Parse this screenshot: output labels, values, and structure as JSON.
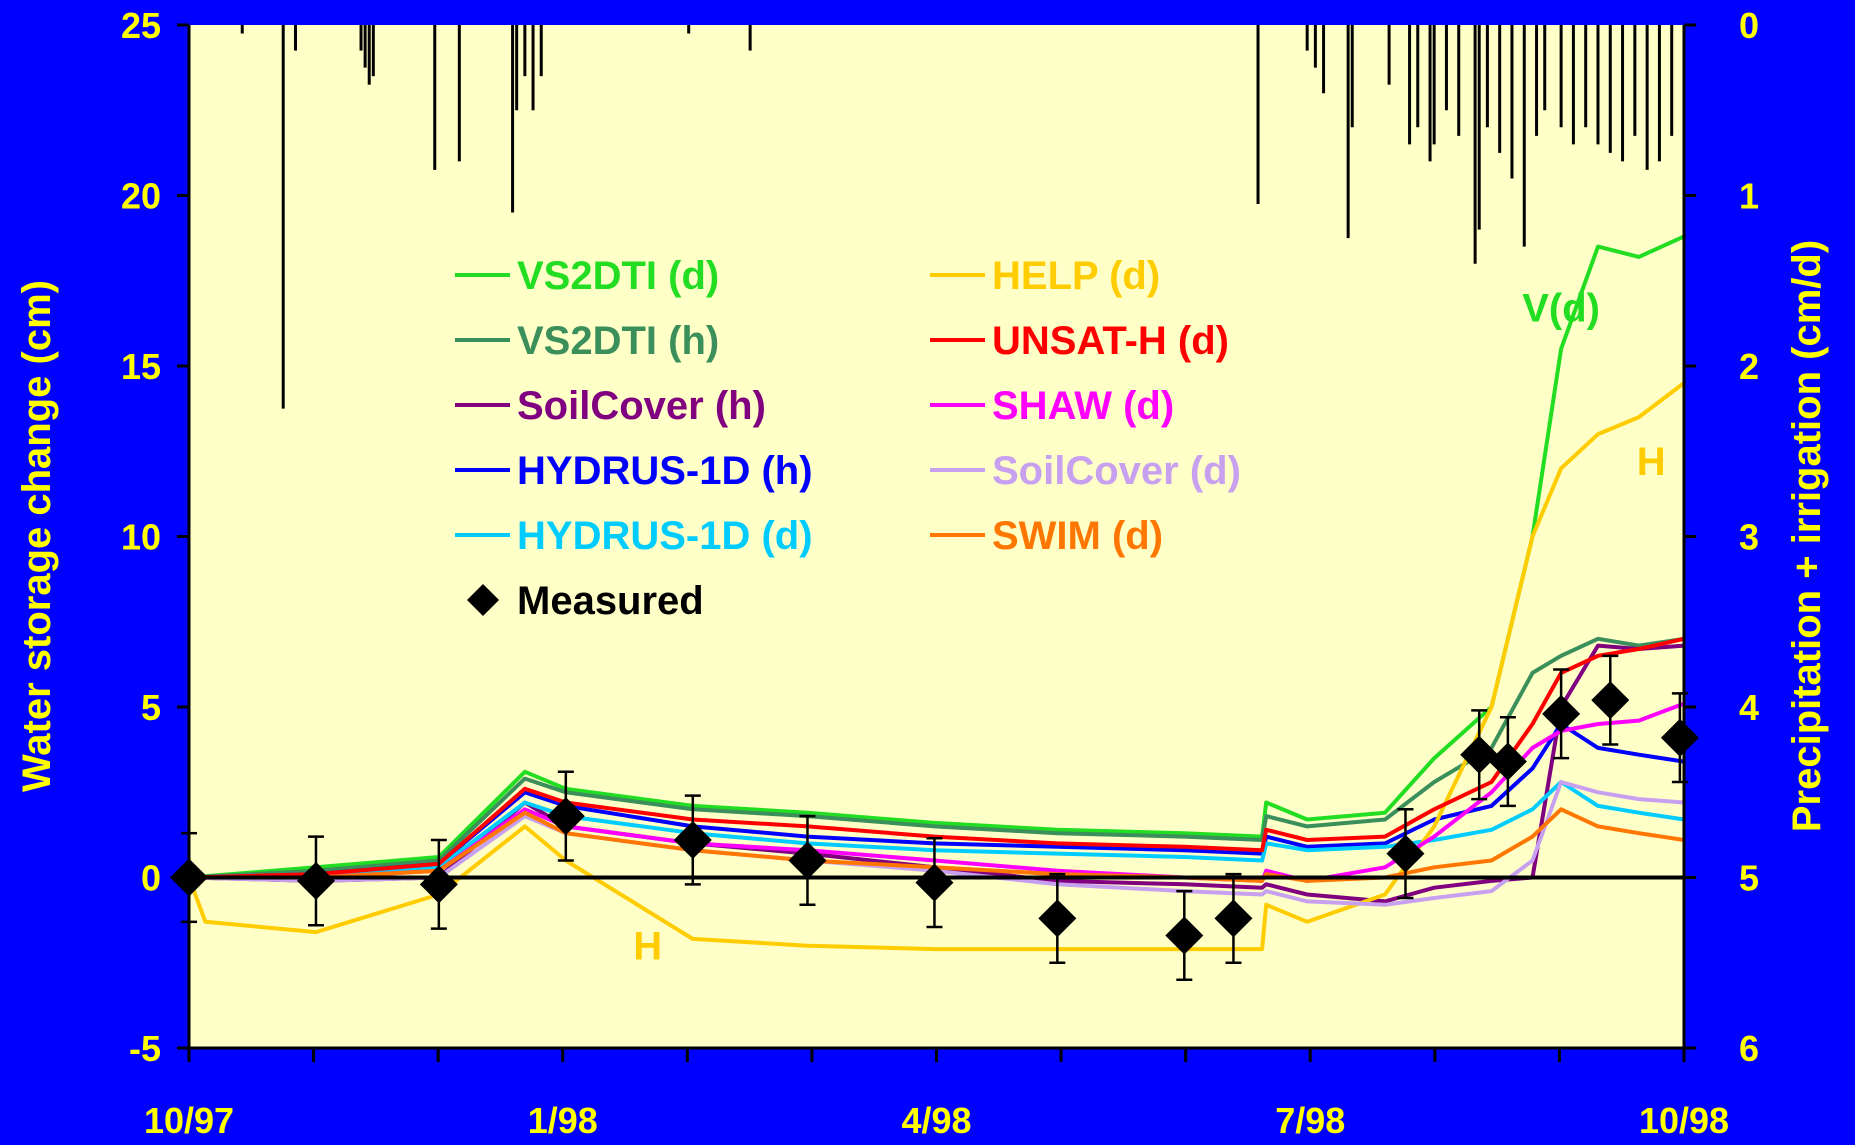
{
  "chart_data": {
    "type": "line",
    "x_ticks": [
      "10/97",
      "1/98",
      "4/98",
      "7/98",
      "10/98"
    ],
    "xlim": [
      "1997-10-01",
      "1998-10-01"
    ],
    "ylabel": "Water storage change (cm)",
    "ylim": [
      -5,
      25
    ],
    "y_ticks": [
      "-5",
      "0",
      "5",
      "10",
      "15",
      "20",
      "25"
    ],
    "y2label": "Precipitation + irrigation (cm/d)",
    "y2lim": [
      0,
      6
    ],
    "y2_reversed": true,
    "y2_ticks": [
      "0",
      "1",
      "2",
      "3",
      "4",
      "5",
      "6"
    ],
    "grid": false,
    "legend_placement": "upper-left, two columns",
    "colors": {
      "background": "#0000ff",
      "plot_background": "#ffffc8",
      "axis_text": "#ffff00"
    },
    "series": [
      {
        "name": "VS2DTI (d)",
        "color": "#22dd22",
        "x": [
          "1997-10-01",
          "1997-11-01",
          "1997-12-01",
          "1997-12-22",
          "1998-01-01",
          "1998-02-01",
          "1998-03-01",
          "1998-04-01",
          "1998-05-01",
          "1998-06-01",
          "1998-06-20",
          "1998-06-21",
          "1998-07-01",
          "1998-07-20",
          "1998-08-01",
          "1998-08-15",
          "1998-08-25",
          "1998-09-01",
          "1998-09-10",
          "1998-09-20",
          "1998-10-01"
        ],
        "y": [
          0,
          0.3,
          0.6,
          3.1,
          2.6,
          2.1,
          1.9,
          1.6,
          1.4,
          1.3,
          1.2,
          2.2,
          1.7,
          1.9,
          3.5,
          5.0,
          10.0,
          15.5,
          18.5,
          18.2,
          18.8
        ]
      },
      {
        "name": "VS2DTI (h)",
        "color": "#3a8f5a",
        "x": [
          "1997-10-01",
          "1997-11-01",
          "1997-12-01",
          "1997-12-22",
          "1998-01-01",
          "1998-02-01",
          "1998-03-01",
          "1998-04-01",
          "1998-05-01",
          "1998-06-01",
          "1998-06-20",
          "1998-06-21",
          "1998-07-01",
          "1998-07-20",
          "1998-08-01",
          "1998-08-15",
          "1998-08-25",
          "1998-09-01",
          "1998-09-10",
          "1998-09-20",
          "1998-10-01"
        ],
        "y": [
          0,
          0.2,
          0.5,
          2.9,
          2.5,
          2.0,
          1.8,
          1.5,
          1.3,
          1.2,
          1.1,
          1.8,
          1.5,
          1.7,
          2.8,
          3.8,
          6.0,
          6.5,
          7.0,
          6.8,
          7.0
        ]
      },
      {
        "name": "SoilCover (h)",
        "color": "#800080",
        "x": [
          "1997-10-01",
          "1997-11-01",
          "1997-12-01",
          "1997-12-22",
          "1998-01-01",
          "1998-02-01",
          "1998-03-01",
          "1998-04-01",
          "1998-05-01",
          "1998-06-01",
          "1998-06-20",
          "1998-06-21",
          "1998-07-01",
          "1998-07-20",
          "1998-08-01",
          "1998-08-15",
          "1998-08-25",
          "1998-09-01",
          "1998-09-10",
          "1998-09-20",
          "1998-10-01"
        ],
        "y": [
          0,
          -0.1,
          0.0,
          2.2,
          1.5,
          1.0,
          0.7,
          0.3,
          -0.1,
          -0.2,
          -0.3,
          -0.2,
          -0.5,
          -0.7,
          -0.3,
          -0.1,
          0.0,
          5.0,
          6.8,
          6.7,
          6.8
        ]
      },
      {
        "name": "HYDRUS-1D (h)",
        "color": "#0000ff",
        "x": [
          "1997-10-01",
          "1997-11-01",
          "1997-12-01",
          "1997-12-22",
          "1998-01-01",
          "1998-02-01",
          "1998-03-01",
          "1998-04-01",
          "1998-05-01",
          "1998-06-01",
          "1998-06-20",
          "1998-06-21",
          "1998-07-01",
          "1998-07-20",
          "1998-08-01",
          "1998-08-15",
          "1998-08-25",
          "1998-09-01",
          "1998-09-10",
          "1998-09-20",
          "1998-10-01"
        ],
        "y": [
          0,
          0.1,
          0.4,
          2.5,
          2.1,
          1.5,
          1.2,
          1.0,
          0.9,
          0.8,
          0.7,
          1.2,
          0.9,
          1.0,
          1.7,
          2.1,
          3.2,
          4.5,
          3.8,
          3.6,
          3.4
        ]
      },
      {
        "name": "HYDRUS-1D (d)",
        "color": "#00ccff",
        "x": [
          "1997-10-01",
          "1997-11-01",
          "1997-12-01",
          "1997-12-22",
          "1998-01-01",
          "1998-02-01",
          "1998-03-01",
          "1998-04-01",
          "1998-05-01",
          "1998-06-01",
          "1998-06-20",
          "1998-06-21",
          "1998-07-01",
          "1998-07-20",
          "1998-08-01",
          "1998-08-15",
          "1998-08-25",
          "1998-09-01",
          "1998-09-10",
          "1998-09-20",
          "1998-10-01"
        ],
        "y": [
          0,
          0.1,
          0.3,
          2.2,
          1.8,
          1.3,
          1.0,
          0.8,
          0.7,
          0.6,
          0.5,
          1.0,
          0.8,
          0.9,
          1.1,
          1.4,
          2.0,
          2.8,
          2.1,
          1.9,
          1.7
        ]
      },
      {
        "name": "HELP (d)",
        "color": "#ffcc00",
        "x": [
          "1997-10-01",
          "1997-10-05",
          "1997-11-01",
          "1997-12-01",
          "1997-12-22",
          "1998-01-01",
          "1998-02-01",
          "1998-03-01",
          "1998-04-01",
          "1998-05-01",
          "1998-06-01",
          "1998-06-20",
          "1998-06-21",
          "1998-07-01",
          "1998-07-20",
          "1998-08-01",
          "1998-08-15",
          "1998-08-25",
          "1998-09-01",
          "1998-09-10",
          "1998-09-20",
          "1998-10-01"
        ],
        "y": [
          0,
          -1.3,
          -1.6,
          -0.5,
          1.5,
          0.5,
          -1.8,
          -2.0,
          -2.1,
          -2.1,
          -2.1,
          -2.1,
          -0.8,
          -1.3,
          -0.5,
          1.5,
          5.0,
          10.0,
          12.0,
          13.0,
          13.5,
          14.5
        ]
      },
      {
        "name": "UNSAT-H (d)",
        "color": "#ff0000",
        "x": [
          "1997-10-01",
          "1997-11-01",
          "1997-12-01",
          "1997-12-22",
          "1998-01-01",
          "1998-02-01",
          "1998-03-01",
          "1998-04-01",
          "1998-05-01",
          "1998-06-01",
          "1998-06-20",
          "1998-06-21",
          "1998-07-01",
          "1998-07-20",
          "1998-08-01",
          "1998-08-15",
          "1998-08-25",
          "1998-09-01",
          "1998-09-10",
          "1998-09-20",
          "1998-10-01"
        ],
        "y": [
          0,
          0.1,
          0.4,
          2.6,
          2.2,
          1.7,
          1.5,
          1.2,
          1.0,
          0.9,
          0.8,
          1.4,
          1.1,
          1.2,
          2.0,
          2.8,
          4.5,
          6.0,
          6.5,
          6.7,
          7.0
        ]
      },
      {
        "name": "SHAW (d)",
        "color": "#ff00ff",
        "x": [
          "1997-10-01",
          "1997-11-01",
          "1997-12-01",
          "1997-12-22",
          "1998-01-01",
          "1998-02-01",
          "1998-03-01",
          "1998-04-01",
          "1998-05-01",
          "1998-06-01",
          "1998-06-20",
          "1998-06-21",
          "1998-07-01",
          "1998-07-20",
          "1998-08-01",
          "1998-08-15",
          "1998-08-25",
          "1998-09-01",
          "1998-09-10",
          "1998-09-20",
          "1998-10-01"
        ],
        "y": [
          0,
          0.0,
          0.2,
          2.0,
          1.5,
          1.0,
          0.8,
          0.5,
          0.2,
          0.0,
          -0.1,
          0.2,
          -0.1,
          0.3,
          1.2,
          2.5,
          3.8,
          4.3,
          4.5,
          4.6,
          5.1
        ]
      },
      {
        "name": "SoilCover (d)",
        "color": "#c8a0f0",
        "x": [
          "1997-10-01",
          "1997-11-01",
          "1997-12-01",
          "1997-12-22",
          "1998-01-01",
          "1998-02-01",
          "1998-03-01",
          "1998-04-01",
          "1998-05-01",
          "1998-06-01",
          "1998-06-20",
          "1998-06-21",
          "1998-07-01",
          "1998-07-20",
          "1998-08-01",
          "1998-08-15",
          "1998-08-25",
          "1998-09-01",
          "1998-09-10",
          "1998-09-20",
          "1998-10-01"
        ],
        "y": [
          0,
          -0.1,
          0.0,
          1.8,
          1.3,
          0.8,
          0.5,
          0.2,
          -0.2,
          -0.4,
          -0.5,
          -0.4,
          -0.7,
          -0.8,
          -0.6,
          -0.4,
          0.5,
          2.8,
          2.5,
          2.3,
          2.2
        ]
      },
      {
        "name": "SWIM (d)",
        "color": "#ff7700",
        "x": [
          "1997-10-01",
          "1997-11-01",
          "1997-12-01",
          "1997-12-22",
          "1998-01-01",
          "1998-02-01",
          "1998-03-01",
          "1998-04-01",
          "1998-05-01",
          "1998-06-01",
          "1998-06-20",
          "1998-06-21",
          "1998-07-01",
          "1998-07-20",
          "1998-08-01",
          "1998-08-15",
          "1998-08-25",
          "1998-09-01",
          "1998-09-10",
          "1998-09-20",
          "1998-10-01"
        ],
        "y": [
          0,
          0.0,
          0.2,
          1.9,
          1.3,
          0.8,
          0.5,
          0.3,
          0.1,
          0.0,
          -0.1,
          0.1,
          -0.1,
          0.0,
          0.3,
          0.5,
          1.2,
          2.0,
          1.5,
          1.3,
          1.1
        ]
      }
    ],
    "measured": {
      "name": "Measured",
      "color": "#000000",
      "x": [
        "1997-10-01",
        "1997-11-01",
        "1997-12-01",
        "1998-01-01",
        "1998-02-01",
        "1998-03-01",
        "1998-04-01",
        "1998-05-01",
        "1998-06-01",
        "1998-06-13",
        "1998-07-25",
        "1998-08-12",
        "1998-08-19",
        "1998-09-01",
        "1998-09-13",
        "1998-09-30"
      ],
      "y": [
        0,
        -0.1,
        -0.2,
        1.8,
        1.1,
        0.5,
        -0.15,
        -1.2,
        -1.7,
        -1.2,
        0.7,
        3.6,
        3.4,
        4.8,
        5.2,
        4.1
      ],
      "error": 1.3
    },
    "precipitation": {
      "axis": "y2",
      "color": "#000000",
      "x": [
        "1997-10-14",
        "1997-10-24",
        "1997-10-27",
        "1997-11-12",
        "1997-11-13",
        "1997-11-14",
        "1997-11-15",
        "1997-11-30",
        "1997-12-06",
        "1997-12-19",
        "1997-12-20",
        "1997-12-22",
        "1997-12-24",
        "1997-12-26",
        "1998-01-31",
        "1998-02-15",
        "1998-06-19",
        "1998-07-01",
        "1998-07-03",
        "1998-07-05",
        "1998-07-11",
        "1998-07-12",
        "1998-07-21",
        "1998-07-26",
        "1998-07-28",
        "1998-07-31",
        "1998-08-01",
        "1998-08-04",
        "1998-08-07",
        "1998-08-11",
        "1998-08-12",
        "1998-08-14",
        "1998-08-17",
        "1998-08-20",
        "1998-08-23",
        "1998-08-26",
        "1998-08-28",
        "1998-09-01",
        "1998-09-04",
        "1998-09-07",
        "1998-09-10",
        "1998-09-13",
        "1998-09-16",
        "1998-09-19",
        "1998-09-22",
        "1998-09-25",
        "1998-09-28"
      ],
      "y": [
        0.05,
        2.25,
        0.15,
        0.15,
        0.25,
        0.35,
        0.3,
        0.85,
        0.8,
        1.1,
        0.5,
        0.3,
        0.5,
        0.3,
        0.05,
        0.15,
        1.05,
        0.15,
        0.25,
        0.4,
        1.25,
        0.6,
        0.35,
        0.7,
        0.6,
        0.8,
        0.7,
        0.5,
        0.65,
        1.4,
        1.2,
        0.6,
        0.75,
        0.9,
        1.3,
        0.65,
        0.5,
        0.6,
        0.7,
        0.6,
        0.7,
        0.75,
        0.8,
        0.65,
        0.85,
        0.8,
        0.65
      ]
    },
    "legend": [
      {
        "label": "VS2DTI (d)",
        "series": 0,
        "column": 1
      },
      {
        "label": "VS2DTI (h)",
        "series": 1,
        "column": 1
      },
      {
        "label": "SoilCover (h)",
        "series": 2,
        "column": 1
      },
      {
        "label": "HYDRUS-1D (h)",
        "series": 3,
        "column": 1
      },
      {
        "label": "HYDRUS-1D (d)",
        "series": 4,
        "column": 1
      },
      {
        "label": "HELP (d)",
        "series": 5,
        "column": 2
      },
      {
        "label": "UNSAT-H (d)",
        "series": 6,
        "column": 2
      },
      {
        "label": "SHAW (d)",
        "series": 7,
        "column": 2
      },
      {
        "label": "SoilCover (d)",
        "series": 8,
        "column": 2
      },
      {
        "label": "SWIM (d)",
        "series": 9,
        "column": 2
      }
    ],
    "legend_measured_label": "Measured",
    "annotations": [
      {
        "text": "V(d)",
        "color": "#22dd22",
        "x": "1998-09-01",
        "y": 16.3
      },
      {
        "text": "H",
        "color": "#ffcc00",
        "x": "1998-09-23",
        "y": 11.8
      },
      {
        "text": "H",
        "color": "#ffcc00",
        "x": "1998-01-21",
        "y": -2.4
      }
    ]
  }
}
